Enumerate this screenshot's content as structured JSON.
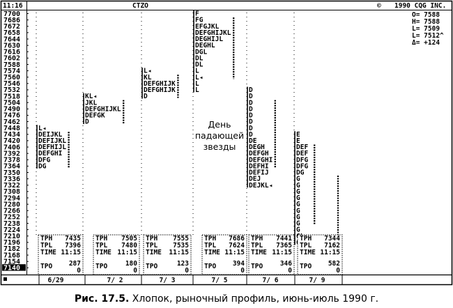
{
  "header": {
    "time": "11:16",
    "symbol": "CTZO",
    "copyright_symbol": "©",
    "copyright_text": "1990 CQG INC."
  },
  "quote": {
    "open": "O= 7588",
    "high": "H= 7588",
    "low": "L= 7509",
    "last": "L= 7512^",
    "change": "Δ= +124"
  },
  "annotation": [
    "День",
    "падающей",
    "звезды"
  ],
  "caption": {
    "label": "Рис. 17.5.",
    "text": " Хлопок, рыночный профиль, июнь-июль 1990 г."
  },
  "chart_data": {
    "type": "market-profile",
    "title": "CTZO",
    "y_ticks": [
      "7700",
      "7686",
      "7672",
      "7658",
      "7644",
      "7630",
      "7616",
      "7602",
      "7588",
      "7574",
      "7560",
      "7546",
      "7532",
      "7518",
      "7504",
      "7490",
      "7476",
      "7462",
      "7448",
      "7434",
      "7420",
      "7406",
      "7392",
      "7378",
      "7364",
      "7350",
      "7336",
      "7322",
      "7308",
      "7294",
      "7280",
      "7266",
      "7252",
      "7238",
      "7224",
      "7210",
      "7196",
      "7182",
      "7168",
      "7154",
      "7140"
    ],
    "highlighted_tick": "7140",
    "ylim": [
      7140,
      7700
    ],
    "x_labels": [
      "6/29",
      "7/ 2",
      "7/ 3",
      "7/ 5",
      "7/ 6",
      "7/ 9"
    ],
    "sessions": [
      {
        "date": "6/29",
        "top": "7448",
        "rows": [
          "L◂",
          "DEIJKL",
          "DEFIJKL",
          "DEFHIJL",
          "DEFGHI",
          "DFG",
          "DG"
        ],
        "tph_label": "TPH",
        "tph_value": "7435",
        "tpl_label": "TPL",
        "tpl_value": "7396",
        "time_label": "TIME",
        "time_value": "11:15",
        "tpo_label": "TPO",
        "tpo_value": "287",
        "tpo_extra": "0"
      },
      {
        "date": "7/ 2",
        "top": "7518",
        "rows": [
          "KL◂",
          "JKL",
          "DEFGHIJKL",
          "DEFGK",
          "D"
        ],
        "tph_label": "TPH",
        "tph_value": "7505",
        "tpl_label": "TPL",
        "tpl_value": "7480",
        "time_label": "TIME",
        "time_value": "11:15",
        "tpo_label": "TPO",
        "tpo_value": "180",
        "tpo_extra": "0"
      },
      {
        "date": "7/ 3",
        "top": "7574",
        "rows": [
          "L◂",
          "KL",
          "DEFGHIJK",
          "DEFGHIJK",
          "D"
        ],
        "tph_label": "TPH",
        "tph_value": "7555",
        "tpl_label": "TPL",
        "tpl_value": "7535",
        "time_label": "TIME",
        "time_value": "11:15",
        "tpo_label": "TPO",
        "tpo_value": "123",
        "tpo_extra": "0"
      },
      {
        "date": "7/ 5",
        "top": "7700",
        "rows": [
          "F",
          "FG",
          "EFGJKL",
          "DEFGHIJKL",
          "DEGHIJL",
          "DEGHL",
          "DGL",
          "DL",
          "DL",
          "L",
          "L◂",
          "L",
          "L"
        ],
        "tph_label": "TPH",
        "tph_value": "7686",
        "tpl_label": "TPL",
        "tpl_value": "7624",
        "time_label": "TIME",
        "time_value": "11:15",
        "tpo_label": "TPO",
        "tpo_value": "394",
        "tpo_extra": "0"
      },
      {
        "date": "7/ 6",
        "top": "7532",
        "rows": [
          "D",
          "D",
          "D",
          "D",
          "D",
          "D",
          "D",
          "D",
          "DE",
          "DEGH",
          "DEFGH",
          "DEFGHI",
          "DEFHI",
          "DEFIJ",
          "DEJ",
          "DEJKL◂"
        ],
        "tph_label": "TPH",
        "tph_value": "7441",
        "tpl_label": "TPL",
        "tpl_value": "7365",
        "time_label": "TIME",
        "time_value": "11:15",
        "tpo_label": "TPO",
        "tpo_value": "346",
        "tpo_extra": "0"
      },
      {
        "date": "7/ 9",
        "top": "7434",
        "rows": [
          "E",
          "E",
          "DEF",
          "DEF",
          "DFG",
          "DFG",
          "DG",
          "G",
          "G",
          "G",
          "G",
          "G",
          "G",
          "G",
          "G",
          "G",
          "GL",
          "GHKL"
        ],
        "tph_label": "TPH",
        "tph_value": "7344",
        "tpl_label": "TPL",
        "tpl_value": "7162",
        "time_label": "TIME",
        "time_value": "11:15",
        "tpo_label": "TPO",
        "tpo_value": "582",
        "tpo_extra": "0"
      }
    ]
  }
}
